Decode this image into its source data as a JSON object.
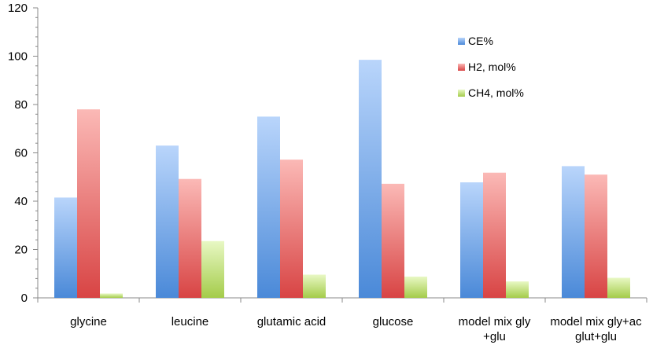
{
  "chart_data": {
    "type": "bar",
    "categories": [
      [
        "glycine"
      ],
      [
        "leucine"
      ],
      [
        "glutamic acid"
      ],
      [
        "glucose"
      ],
      [
        "model mix gly",
        "+glu"
      ],
      [
        "model mix gly+ac",
        "glut+glu"
      ]
    ],
    "series": [
      {
        "name": "CE%",
        "values": [
          41.5,
          63,
          75,
          98.5,
          47.8,
          54.5
        ],
        "color_top": "#b9d5fb",
        "color_bottom": "#4a89d8"
      },
      {
        "name": "H2, mol%",
        "values": [
          78,
          49.2,
          57.2,
          47.2,
          51.8,
          51
        ],
        "color_top": "#fbb9b6",
        "color_bottom": "#d84444"
      },
      {
        "name": "CH4, mol%",
        "values": [
          1.8,
          23.5,
          9.6,
          8.8,
          6.8,
          8.3
        ],
        "color_top": "#e8f8c4",
        "color_bottom": "#a4cc4a"
      }
    ],
    "ylim": [
      0,
      120
    ],
    "yticks": [
      "0",
      "20",
      "40",
      "60",
      "80",
      "100",
      "120"
    ],
    "legend_position": "right-upper",
    "grid": false
  }
}
